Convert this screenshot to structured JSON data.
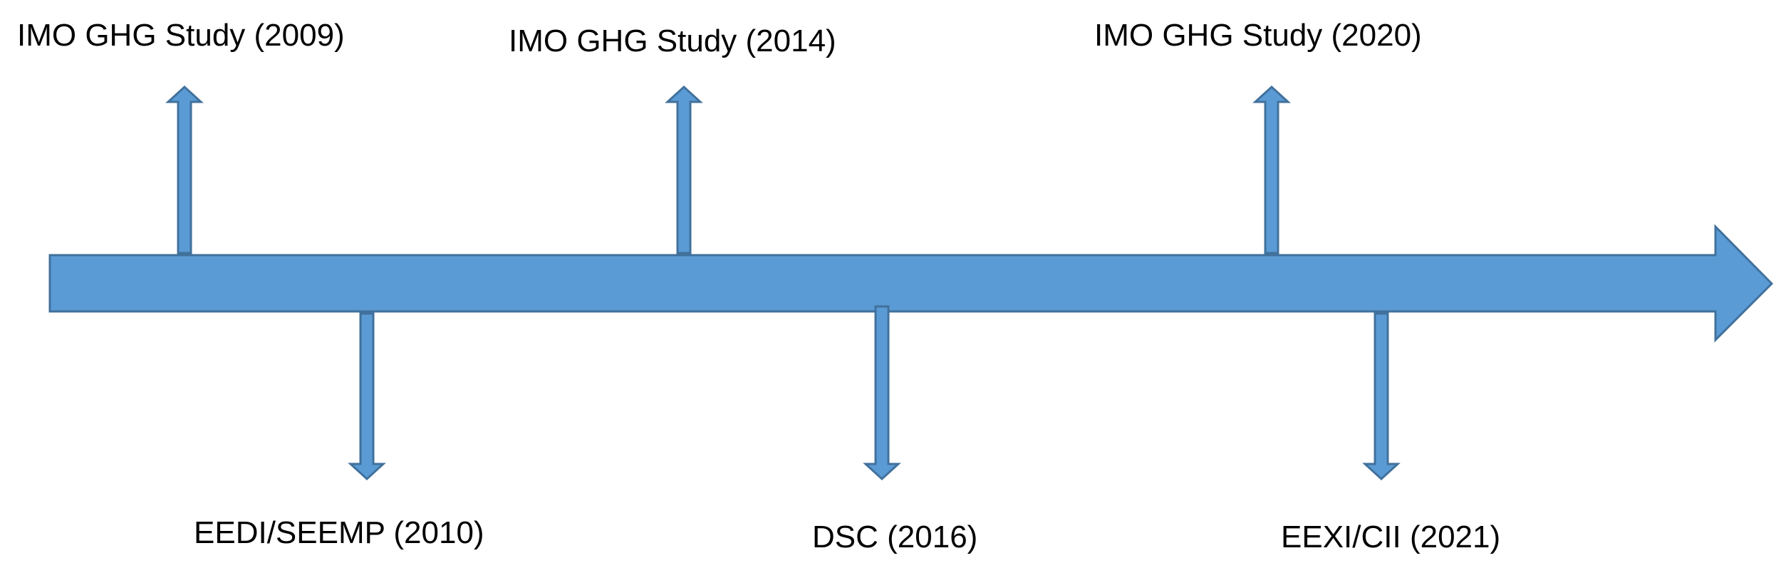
{
  "colors": {
    "arrow_fill": "#5B9BD5",
    "arrow_stroke": "#41719C",
    "text": "#000000"
  },
  "events_above": [
    {
      "label": "IMO GHG Study (2009)"
    },
    {
      "label": "IMO GHG Study (2014)"
    },
    {
      "label": "IMO GHG Study (2020)"
    }
  ],
  "events_below": [
    {
      "label": "EEDI/SEEMP (2010)"
    },
    {
      "label": "DSC (2016)"
    },
    {
      "label": "EEXI/CII (2021)"
    }
  ]
}
